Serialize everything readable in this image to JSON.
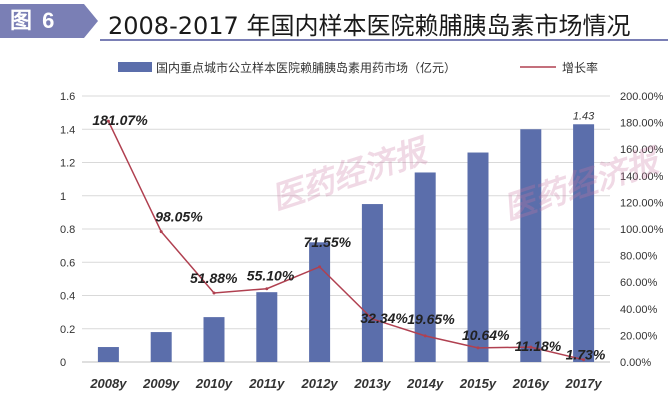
{
  "header": {
    "badge": "图 6",
    "title": "2008-2017 年国内样本医院赖脯胰岛素市场情况"
  },
  "watermark_text": "医药经济报",
  "colors": {
    "bar": "#5b6eab",
    "line": "#b04050",
    "badge": "#7a7fb5",
    "grid": "#d9d9d9"
  },
  "chart_data": {
    "type": "bar",
    "categories": [
      "2008y",
      "2009y",
      "2010y",
      "2011y",
      "2012y",
      "2013y",
      "2014y",
      "2015y",
      "2016y",
      "2017y"
    ],
    "series": [
      {
        "name": "国内重点城市公立样本医院赖脯胰岛素用药市场（亿元）",
        "type": "bar",
        "axis": "left",
        "values": [
          0.09,
          0.18,
          0.27,
          0.42,
          0.72,
          0.95,
          1.14,
          1.26,
          1.4,
          1.43
        ]
      },
      {
        "name": "增长率",
        "type": "line",
        "axis": "right",
        "values": [
          181.07,
          98.05,
          51.88,
          55.1,
          71.55,
          32.34,
          19.65,
          10.64,
          11.18,
          1.73
        ]
      }
    ],
    "bar_value_labels": [
      "",
      "",
      "",
      "",
      "",
      "",
      "",
      "",
      "",
      "1.43"
    ],
    "line_value_labels": [
      "181.07%",
      "98.05%",
      "51.88%",
      "55.10%",
      "71.55%",
      "32.34%",
      "19.65%",
      "10.64%",
      "11.18%",
      "1.73%"
    ],
    "y_left": {
      "ylim": [
        0,
        1.6
      ],
      "ticks": [
        "0",
        "0.2",
        "0.4",
        "0.6",
        "0.8",
        "1",
        "1.2",
        "1.4",
        "1.6"
      ]
    },
    "y_right": {
      "ylim": [
        0,
        200
      ],
      "ticks": [
        "0.00%",
        "20.00%",
        "40.00%",
        "60.00%",
        "80.00%",
        "100.00%",
        "120.00%",
        "140.00%",
        "160.00%",
        "180.00%",
        "200.00%"
      ]
    },
    "grid": true,
    "legend_position": "top"
  }
}
